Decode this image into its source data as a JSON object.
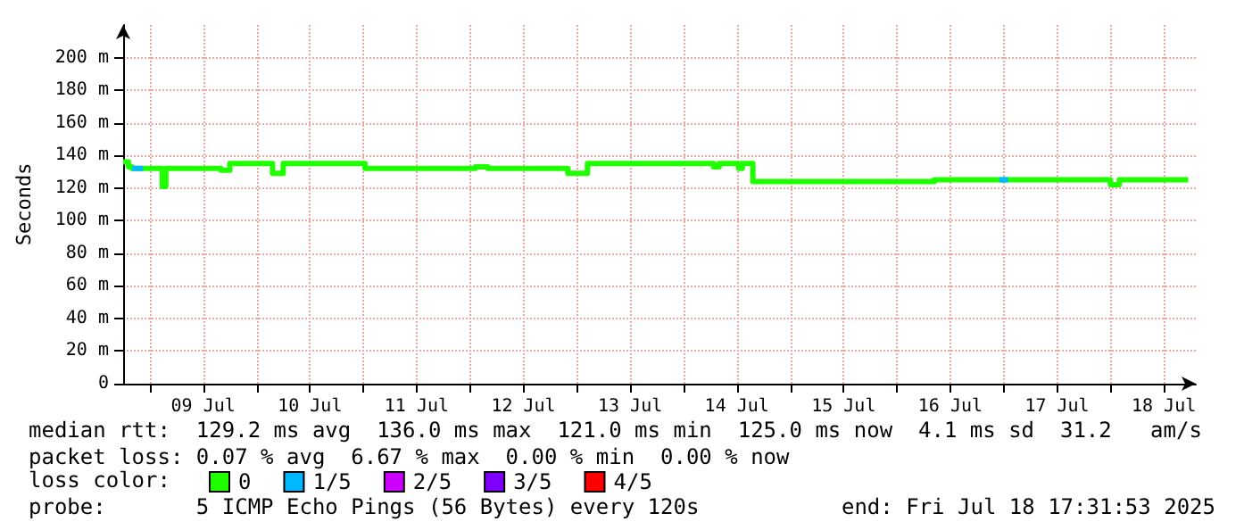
{
  "chart_data": {
    "type": "step",
    "ylabel": "Seconds",
    "xlim": [
      "2025-07-08T18:00",
      "2025-07-18T19:12"
    ],
    "xticks": [
      {
        "value": "2025-07-09T00:00",
        "label": null
      },
      {
        "value": "2025-07-09T12:00",
        "label": "09 Jul"
      },
      {
        "value": "2025-07-10T00:00",
        "label": null
      },
      {
        "value": "2025-07-10T12:00",
        "label": "10 Jul"
      },
      {
        "value": "2025-07-11T00:00",
        "label": null
      },
      {
        "value": "2025-07-11T12:00",
        "label": "11 Jul"
      },
      {
        "value": "2025-07-12T00:00",
        "label": null
      },
      {
        "value": "2025-07-12T12:00",
        "label": "12 Jul"
      },
      {
        "value": "2025-07-13T00:00",
        "label": null
      },
      {
        "value": "2025-07-13T12:00",
        "label": "13 Jul"
      },
      {
        "value": "2025-07-14T00:00",
        "label": null
      },
      {
        "value": "2025-07-14T12:00",
        "label": "14 Jul"
      },
      {
        "value": "2025-07-15T00:00",
        "label": null
      },
      {
        "value": "2025-07-15T12:00",
        "label": "15 Jul"
      },
      {
        "value": "2025-07-16T00:00",
        "label": null
      },
      {
        "value": "2025-07-16T12:00",
        "label": "16 Jul"
      },
      {
        "value": "2025-07-17T00:00",
        "label": null
      },
      {
        "value": "2025-07-17T12:00",
        "label": "17 Jul"
      },
      {
        "value": "2025-07-18T00:00",
        "label": null
      },
      {
        "value": "2025-07-18T12:00",
        "label": "18 Jul"
      }
    ],
    "ylim": [
      0,
      220
    ],
    "yticks": [
      0,
      {
        "value": 20,
        "label": "20 m"
      },
      {
        "value": 40,
        "label": "40 m"
      },
      {
        "value": 60,
        "label": "60 m"
      },
      {
        "value": 80,
        "label": "80 m"
      },
      {
        "value": 100,
        "label": "100 m"
      },
      {
        "value": 120,
        "label": "120 m"
      },
      {
        "value": 140,
        "label": "140 m"
      },
      {
        "value": 160,
        "label": "160 m"
      },
      {
        "value": 180,
        "label": "180 m"
      },
      {
        "value": 200,
        "label": "200 m"
      }
    ],
    "grid": true,
    "marker": "none",
    "legend": "bottom left",
    "legend_title": "loss color:",
    "series": [
      {
        "name": "0",
        "color": "#20ff00",
        "x": [
          "2025-07-08T18:00",
          "2025-07-08T19:12",
          "2025-07-08T20:00",
          "2025-07-09T02:48",
          "2025-07-09T03:36",
          "2025-07-09T16:00",
          "2025-07-09T18:00",
          "2025-07-10T03:36",
          "2025-07-10T06:00",
          "2025-07-11T00:24",
          "2025-07-12T01:12",
          "2025-07-12T04:00",
          "2025-07-12T22:00",
          "2025-07-13T02:24",
          "2025-07-14T06:48",
          "2025-07-14T08:00",
          "2025-07-14T12:24",
          "2025-07-14T13:12",
          "2025-07-14T15:36",
          "2025-07-16T08:24",
          "2025-07-18T00:00",
          "2025-07-18T02:00",
          "2025-07-18T17:30"
        ],
        "values": [
          136,
          133,
          132,
          121,
          132,
          131,
          135,
          129,
          135,
          132,
          133,
          132,
          129,
          135,
          133,
          135,
          132,
          135,
          124,
          125,
          122,
          125,
          125
        ]
      },
      {
        "name": "1/5",
        "color": "#00b8ff",
        "x": [
          "2025-07-08T20:00",
          "2025-07-08T22:30",
          "2025-07-08T22:34",
          "2025-07-16T23:00",
          "2025-07-17T01:00"
        ],
        "values": [
          132,
          132,
          null,
          125,
          125
        ]
      },
      {
        "name": "2/5",
        "color": "#cc00ff"
      },
      {
        "name": "3/5",
        "color": "#7e00ff"
      },
      {
        "name": "4/5",
        "color": "#ff0000"
      }
    ],
    "annotations": [
      "median rtt:  129.2 ms avg  136.0 ms max  121.0 ms min  125.0 ms now  4.1 ms sd  31.2   am/s",
      "packet loss: 0.07 % avg  6.67 % max  0.00 % min  0.00 % now",
      "probe:       5 ICMP Echo Pings (56 Bytes) every 120s",
      "end: Fri Jul 18 17:31:53 2025"
    ]
  }
}
